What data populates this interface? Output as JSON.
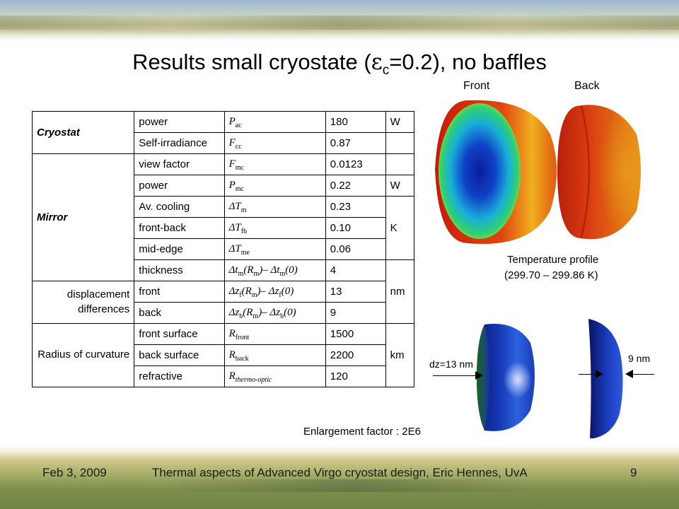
{
  "slide": {
    "title_main": "Results small cryostate (",
    "title_epsilon": "ε",
    "title_sub": "c",
    "title_rest": "=0.2), no baffles"
  },
  "table": {
    "groups": {
      "cryostat": "Cryostat",
      "mirror": "Mirror",
      "displacement": "displacement differences",
      "radius": "Radius of curvature"
    },
    "rows": [
      {
        "label": "power",
        "sym": "P",
        "sub": "ac",
        "value": "180"
      },
      {
        "label": "Self-irradiance",
        "sym": "F",
        "sub": "cc",
        "value": "0.87"
      },
      {
        "label": "view factor",
        "sym": "F",
        "sub": "mc",
        "value": "0.0123"
      },
      {
        "label": "power",
        "sym": "P",
        "sub": "mc",
        "value": "0.22"
      },
      {
        "label": "Av. cooling",
        "sym": "ΔT",
        "sub": "m",
        "value": "0.23"
      },
      {
        "label": "front-back",
        "sym": "ΔT",
        "sub": "fb",
        "value": "0.10"
      },
      {
        "label": "mid-edge",
        "sym": "ΔT",
        "sub": "me",
        "value": "0.06"
      },
      {
        "label": "thickness",
        "sym": "Δt",
        "sub": "m",
        "sym_tail": "(R",
        "sub2": "m",
        "sym_tail2": ")– Δt",
        "sub3": "m",
        "sym_tail3": "(0)",
        "value": "4"
      },
      {
        "label": "front",
        "sym": "Δz",
        "sub": "f",
        "sym_tail": "(R",
        "sub2": "m",
        "sym_tail2": ")– Δz",
        "sub3": "f",
        "sym_tail3": "(0)",
        "value": "13"
      },
      {
        "label": "back",
        "sym": "Δz",
        "sub": "b",
        "sym_tail": "(R",
        "sub2": "m",
        "sym_tail2": ")– Δz",
        "sub3": "b",
        "sym_tail3": "(0)",
        "value": "9"
      },
      {
        "label": "front surface",
        "sym": "R",
        "sub": "front",
        "value": "1500"
      },
      {
        "label": "back surface",
        "sym": "R",
        "sub": "back",
        "value": "2200"
      },
      {
        "label": "refractive",
        "sym": "R",
        "sub": "thermo-optic",
        "value": "120"
      }
    ],
    "units": {
      "W1": "W",
      "W2": "W",
      "K": "K",
      "nm": "nm",
      "km": "km"
    }
  },
  "figure": {
    "front_label": "Front",
    "back_label": "Back",
    "temp_caption_1": "Temperature profile",
    "temp_caption_2": "(299.70 – 299.86 K)",
    "dz_label": "dz=13 nm",
    "nm_label": "9 nm",
    "enlargement": "Enlargement factor : 2E6"
  },
  "footer": {
    "date": "Feb 3, 2009",
    "title": "Thermal aspects of Advanced Virgo cryostat design, Eric Hennes, UvA",
    "page": "9"
  },
  "colors": {
    "hot": "#c81a0c",
    "warm": "#e8b020",
    "cool": "#28c8a0",
    "cold": "#0a1e9a"
  }
}
